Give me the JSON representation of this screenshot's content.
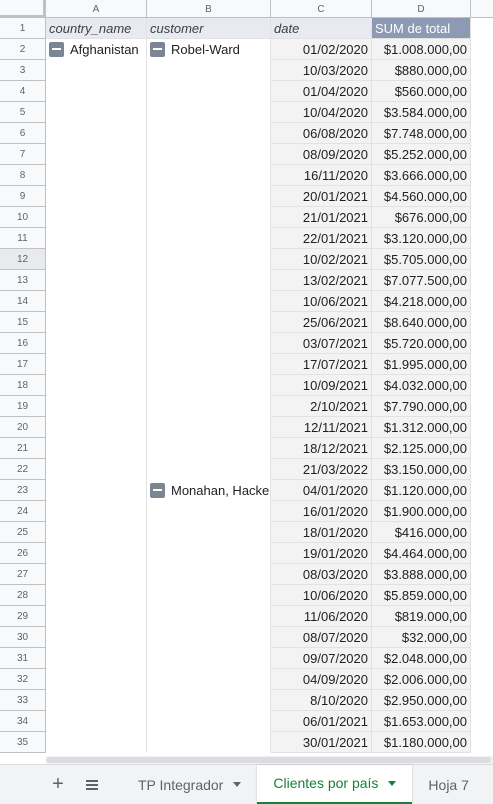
{
  "columns": [
    "A",
    "B",
    "C",
    "D"
  ],
  "headers": {
    "a": "country_name",
    "b": "customer",
    "c": "date",
    "d": "SUM de total"
  },
  "country": "Afghanistan",
  "customers": [
    "Robel-Ward",
    "Monahan, Hacke"
  ],
  "rows": [
    {
      "n": "1"
    },
    {
      "n": "2",
      "date": "01/02/2020",
      "total": "$1.008.000,00"
    },
    {
      "n": "3",
      "date": "10/03/2020",
      "total": "$880.000,00"
    },
    {
      "n": "4",
      "date": "01/04/2020",
      "total": "$560.000,00"
    },
    {
      "n": "5",
      "date": "10/04/2020",
      "total": "$3.584.000,00"
    },
    {
      "n": "6",
      "date": "06/08/2020",
      "total": "$7.748.000,00"
    },
    {
      "n": "7",
      "date": "08/09/2020",
      "total": "$5.252.000,00"
    },
    {
      "n": "8",
      "date": "16/11/2020",
      "total": "$3.666.000,00"
    },
    {
      "n": "9",
      "date": "20/01/2021",
      "total": "$4.560.000,00"
    },
    {
      "n": "10",
      "date": "21/01/2021",
      "total": "$676.000,00"
    },
    {
      "n": "11",
      "date": "22/01/2021",
      "total": "$3.120.000,00"
    },
    {
      "n": "12",
      "date": "10/02/2021",
      "total": "$5.705.000,00"
    },
    {
      "n": "13",
      "date": "13/02/2021",
      "total": "$7.077.500,00"
    },
    {
      "n": "14",
      "date": "10/06/2021",
      "total": "$4.218.000,00"
    },
    {
      "n": "15",
      "date": "25/06/2021",
      "total": "$8.640.000,00"
    },
    {
      "n": "16",
      "date": "03/07/2021",
      "total": "$5.720.000,00"
    },
    {
      "n": "17",
      "date": "17/07/2021",
      "total": "$1.995.000,00"
    },
    {
      "n": "18",
      "date": "10/09/2021",
      "total": "$4.032.000,00"
    },
    {
      "n": "19",
      "date": "2/10/2021",
      "total": "$7.790.000,00"
    },
    {
      "n": "20",
      "date": "12/11/2021",
      "total": "$1.312.000,00"
    },
    {
      "n": "21",
      "date": "18/12/2021",
      "total": "$2.125.000,00"
    },
    {
      "n": "22",
      "date": "21/03/2022",
      "total": "$3.150.000,00"
    },
    {
      "n": "23",
      "date": "04/01/2020",
      "total": "$1.120.000,00"
    },
    {
      "n": "24",
      "date": "16/01/2020",
      "total": "$1.900.000,00"
    },
    {
      "n": "25",
      "date": "18/01/2020",
      "total": "$416.000,00"
    },
    {
      "n": "26",
      "date": "19/01/2020",
      "total": "$4.464.000,00"
    },
    {
      "n": "27",
      "date": "08/03/2020",
      "total": "$3.888.000,00"
    },
    {
      "n": "28",
      "date": "10/06/2020",
      "total": "$5.859.000,00"
    },
    {
      "n": "29",
      "date": "11/06/2020",
      "total": "$819.000,00"
    },
    {
      "n": "30",
      "date": "08/07/2020",
      "total": "$32.000,00"
    },
    {
      "n": "31",
      "date": "09/07/2020",
      "total": "$2.048.000,00"
    },
    {
      "n": "32",
      "date": "04/09/2020",
      "total": "$2.006.000,00"
    },
    {
      "n": "33",
      "date": "8/10/2020",
      "total": "$2.950.000,00"
    },
    {
      "n": "34",
      "date": "06/01/2021",
      "total": "$1.653.000,00"
    },
    {
      "n": "35",
      "date": "30/01/2021",
      "total": "$1.180.000,00"
    }
  ],
  "tabs": {
    "add_icon": "+",
    "list_icon": "all-sheets-icon",
    "tab1": "TP Integrador",
    "tab2": "Clientes por país",
    "tab3": "Hoja 7"
  },
  "colors": {
    "pivot_header": "#8e9ab3",
    "active_tab": "#188038"
  }
}
